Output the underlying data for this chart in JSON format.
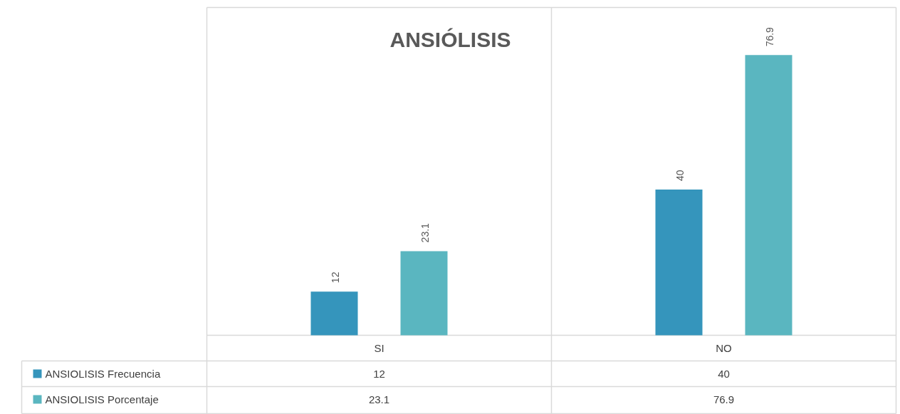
{
  "chart_data": {
    "type": "bar",
    "title": "ANSIÓLISIS",
    "categories": [
      "SI",
      "NO"
    ],
    "series": [
      {
        "name": "ANSIOLISIS Frecuencia",
        "color": "#3595bc",
        "values": [
          12,
          40
        ],
        "value_labels": [
          "12",
          "40"
        ]
      },
      {
        "name": "ANSIOLISIS Porcentaje",
        "color": "#5ab6c0",
        "values": [
          23.1,
          76.9
        ],
        "value_labels": [
          "23.1",
          "76.9"
        ]
      }
    ],
    "data_labels": true,
    "grid": false,
    "legend": "bottom"
  }
}
